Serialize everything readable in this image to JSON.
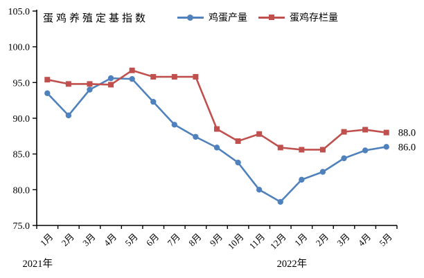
{
  "chart_data": {
    "type": "line",
    "title": "蛋鸡养殖定基指数",
    "xlabel": "",
    "ylabel": "",
    "categories": [
      "1月",
      "2月",
      "3月",
      "4月",
      "5月",
      "6月",
      "7月",
      "8月",
      "9月",
      "10月",
      "11月",
      "12月",
      "1月",
      "2月",
      "3月",
      "4月",
      "5月"
    ],
    "year_labels": [
      {
        "label": "2021年",
        "category_index": 0
      },
      {
        "label": "2022年",
        "category_index": 12
      }
    ],
    "series": [
      {
        "name": "鸡蛋产量",
        "color": "#4f81bd",
        "marker": "circle",
        "values": [
          93.5,
          90.4,
          94.0,
          95.6,
          95.5,
          92.3,
          89.1,
          87.4,
          85.9,
          83.8,
          80.0,
          78.3,
          81.4,
          82.5,
          84.4,
          85.5,
          86.0
        ]
      },
      {
        "name": "蛋鸡存栏量",
        "color": "#c0504d",
        "marker": "square",
        "values": [
          95.4,
          94.8,
          94.8,
          94.7,
          96.7,
          95.8,
          95.8,
          95.8,
          88.5,
          86.8,
          87.8,
          85.9,
          85.6,
          85.6,
          88.1,
          88.4,
          88.0
        ]
      }
    ],
    "ylim": [
      75,
      105
    ],
    "yticks": [
      "105.0",
      "100.0",
      "95.0",
      "90.0",
      "85.0",
      "80.0",
      "75.0"
    ],
    "grid": false,
    "legend_position": "top",
    "data_labels": [
      {
        "series_index": 1,
        "text": "88.0"
      },
      {
        "series_index": 0,
        "text": "86.0"
      }
    ],
    "axis_color": "#000000",
    "text_color": "#000000"
  }
}
